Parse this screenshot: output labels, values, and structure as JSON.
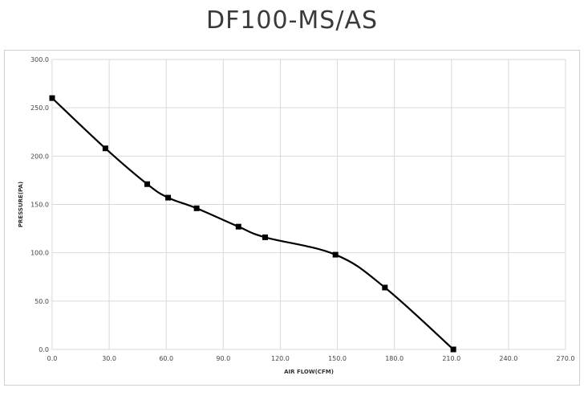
{
  "chart_data": {
    "type": "line",
    "title": "DF100-MS/AS",
    "xlabel": "AIR FLOW(CFM)",
    "ylabel": "PRESSURE(PA)",
    "xlim": [
      0,
      270
    ],
    "ylim": [
      0,
      300
    ],
    "x_ticks": [
      "0.0",
      "30.0",
      "60.0",
      "90.0",
      "120.0",
      "150.0",
      "180.0",
      "210.0",
      "240.0",
      "270.0"
    ],
    "y_ticks": [
      "0.0",
      "50.0",
      "100.0",
      "150.0",
      "200.0",
      "250.0",
      "300.0"
    ],
    "grid": true,
    "series": [
      {
        "color": "#000000",
        "marker": "square",
        "x": [
          0,
          28,
          50,
          61,
          76,
          98,
          112,
          149,
          175,
          211
        ],
        "y": [
          260,
          208,
          171,
          157,
          146,
          127,
          116,
          98,
          64,
          0
        ]
      }
    ]
  }
}
